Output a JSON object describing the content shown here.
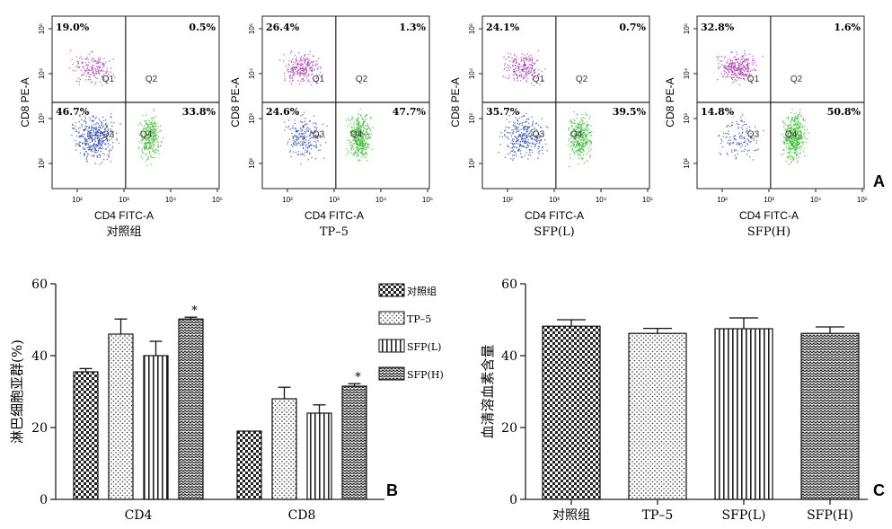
{
  "panel_letters": [
    "A",
    "B",
    "C"
  ],
  "flow": {
    "x_axis_label": "CD4 FITC-A",
    "y_axis_label": "CD8 PE-A",
    "quadrant_names": [
      "Q1",
      "Q2",
      "Q3",
      "Q4"
    ],
    "tick_labels": [
      "10²",
      "10³",
      "10⁴",
      "10⁵"
    ],
    "panels": [
      {
        "group": "对照组",
        "q1": "19.0%",
        "q2": "0.5%",
        "q3": "46.7%",
        "q4": "33.8%"
      },
      {
        "group": "TP–5",
        "q1": "26.4%",
        "q2": "1.3%",
        "q3": "24.6%",
        "q4": "47.7%"
      },
      {
        "group": "SFP(L)",
        "q1": "24.1%",
        "q2": "0.7%",
        "q3": "35.7%",
        "q4": "39.5%"
      },
      {
        "group": "SFP(H)",
        "q1": "32.8%",
        "q2": "1.6%",
        "q3": "14.8%",
        "q4": "50.8%"
      }
    ]
  },
  "chart_data": [
    {
      "type": "bar",
      "panel": "B",
      "ylabel": "淋巴细胞亚群(%)",
      "xlabel": "",
      "ylim": [
        0,
        60
      ],
      "yticks": [
        "0",
        "20",
        "40",
        "60"
      ],
      "categories": [
        "CD4",
        "CD8"
      ],
      "legend_position": "top-right",
      "series": [
        {
          "name": "对照组",
          "pattern": "checker",
          "values": [
            35.5,
            19.0
          ],
          "errors": [
            0.9,
            0.0
          ],
          "sig": [
            "",
            ""
          ]
        },
        {
          "name": "TP–5",
          "pattern": "dots",
          "values": [
            46.0,
            28.0
          ],
          "errors": [
            4.2,
            3.2
          ],
          "sig": [
            "",
            ""
          ]
        },
        {
          "name": "SFP(L)",
          "pattern": "vlines",
          "values": [
            40.0,
            24.0
          ],
          "errors": [
            4.0,
            2.3
          ],
          "sig": [
            "",
            ""
          ]
        },
        {
          "name": "SFP(H)",
          "pattern": "waves",
          "values": [
            50.2,
            31.5
          ],
          "errors": [
            0.5,
            0.7
          ],
          "sig": [
            "*",
            "*"
          ]
        }
      ]
    },
    {
      "type": "bar",
      "panel": "C",
      "ylabel": "血清溶血素含量",
      "xlabel": "",
      "ylim": [
        0,
        60
      ],
      "yticks": [
        "0",
        "20",
        "40",
        "60"
      ],
      "categories": [
        "对照组",
        "TP–5",
        "SFP(L)",
        "SFP(H)"
      ],
      "patterns": [
        "checker",
        "dots",
        "vlines",
        "waves"
      ],
      "values": [
        48.2,
        46.2,
        47.5,
        46.2
      ],
      "errors": [
        1.8,
        1.4,
        3.0,
        1.8
      ]
    }
  ]
}
